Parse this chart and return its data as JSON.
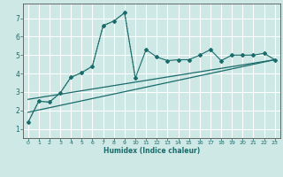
{
  "bg_color": "#cde8e5",
  "grid_color": "#ffffff",
  "line_color": "#1a6b6b",
  "xlabel": "Humidex (Indice chaleur)",
  "xlim": [
    -0.5,
    23.5
  ],
  "ylim": [
    0.5,
    7.8
  ],
  "yticks": [
    1,
    2,
    3,
    4,
    5,
    6,
    7
  ],
  "xticks": [
    0,
    1,
    2,
    3,
    4,
    5,
    6,
    7,
    8,
    9,
    10,
    11,
    12,
    13,
    14,
    15,
    16,
    17,
    18,
    19,
    20,
    21,
    22,
    23
  ],
  "line1_x": [
    0,
    1,
    2,
    3,
    4,
    5,
    6,
    7,
    8,
    9,
    10,
    11,
    12,
    13,
    14,
    15,
    16,
    17,
    18,
    19,
    20,
    21,
    22,
    23
  ],
  "line1_y": [
    1.35,
    2.5,
    2.45,
    2.95,
    3.8,
    4.05,
    4.4,
    6.6,
    6.85,
    7.3,
    3.75,
    5.3,
    4.9,
    4.7,
    4.75,
    4.75,
    5.0,
    5.3,
    4.7,
    5.0,
    5.0,
    5.0,
    5.1,
    4.75
  ],
  "line2_x": [
    0,
    1,
    2,
    3,
    4,
    5,
    6,
    7,
    8,
    9,
    10
  ],
  "line2_y": [
    1.35,
    2.5,
    2.45,
    2.95,
    3.8,
    4.05,
    4.4,
    6.6,
    6.85,
    7.3,
    3.75
  ],
  "line3_x": [
    0,
    23
  ],
  "line3_y": [
    1.9,
    4.75
  ],
  "line4_x": [
    0,
    23
  ],
  "line4_y": [
    2.6,
    4.75
  ]
}
